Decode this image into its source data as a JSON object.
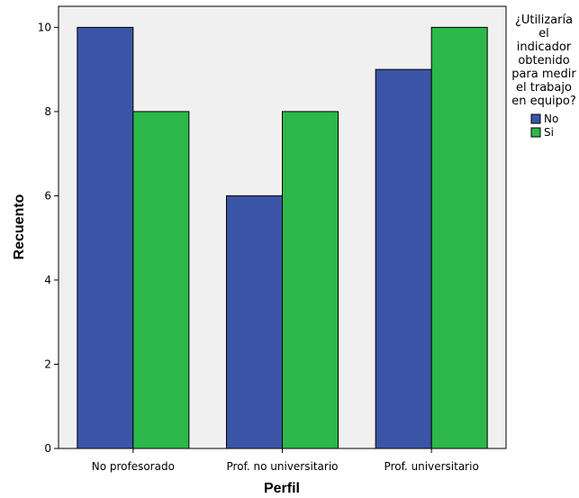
{
  "chart_data": {
    "type": "bar",
    "title": "",
    "xlabel": "Perfil",
    "ylabel": "Recuento",
    "categories": [
      "No profesorado",
      "Prof. no universitario",
      "Prof. universitario"
    ],
    "series": [
      {
        "name": "No",
        "values": [
          10,
          6,
          9
        ],
        "color": "#3b55a6"
      },
      {
        "name": "Si",
        "values": [
          8,
          8,
          10
        ],
        "color": "#2db84a"
      }
    ],
    "ylim": [
      0,
      10.5
    ],
    "yticks": [
      0,
      2,
      4,
      6,
      8,
      10
    ],
    "grid": false,
    "legend": {
      "title_lines": [
        "¿Utilizaría",
        "el",
        "indicador",
        "obtenido",
        "para medir",
        "el trabajo",
        "en equipo?"
      ],
      "placement": "right"
    },
    "plot_background": "#f0f0f0"
  }
}
